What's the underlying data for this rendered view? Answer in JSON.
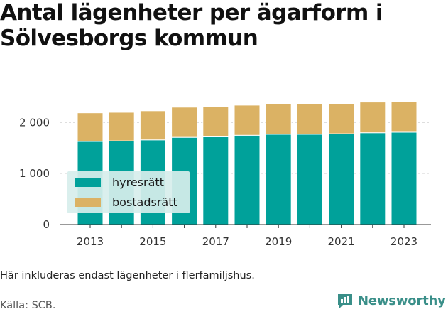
{
  "title": "Antal lägenheter per ägarform i Sölvesborgs kommun",
  "footnote": "Här inkluderas endast lägenheter i flerfamiljshus.",
  "source": "Källa: SCB.",
  "brand": {
    "name": "Newsworthy",
    "color": "#3a8f89",
    "icon": "bar-chart-badge-icon"
  },
  "colors": {
    "hyresratt": "#00a19a",
    "bostadsratt": "#dbb264",
    "grid": "#d9d9d9",
    "legend_bg": "#d7eeec"
  },
  "chart_data": {
    "type": "bar",
    "stacked": true,
    "categories": [
      "2013",
      "2014",
      "2015",
      "2016",
      "2017",
      "2018",
      "2019",
      "2020",
      "2021",
      "2022",
      "2023"
    ],
    "x_tick_labels": [
      "2013",
      "2015",
      "2017",
      "2019",
      "2021",
      "2023"
    ],
    "series": [
      {
        "name": "hyresrätt",
        "values": [
          1630,
          1640,
          1660,
          1710,
          1720,
          1750,
          1770,
          1770,
          1780,
          1800,
          1810
        ]
      },
      {
        "name": "bostadsrätt",
        "values": [
          560,
          560,
          570,
          590,
          590,
          590,
          590,
          590,
          590,
          600,
          600
        ]
      }
    ],
    "ylim": [
      0,
      2450
    ],
    "y_ticks": [
      0,
      1000,
      2000
    ],
    "y_tick_labels": [
      "0",
      "1 000",
      "2 000"
    ],
    "grid": "horizontal",
    "legend_placement": "inside-left"
  }
}
